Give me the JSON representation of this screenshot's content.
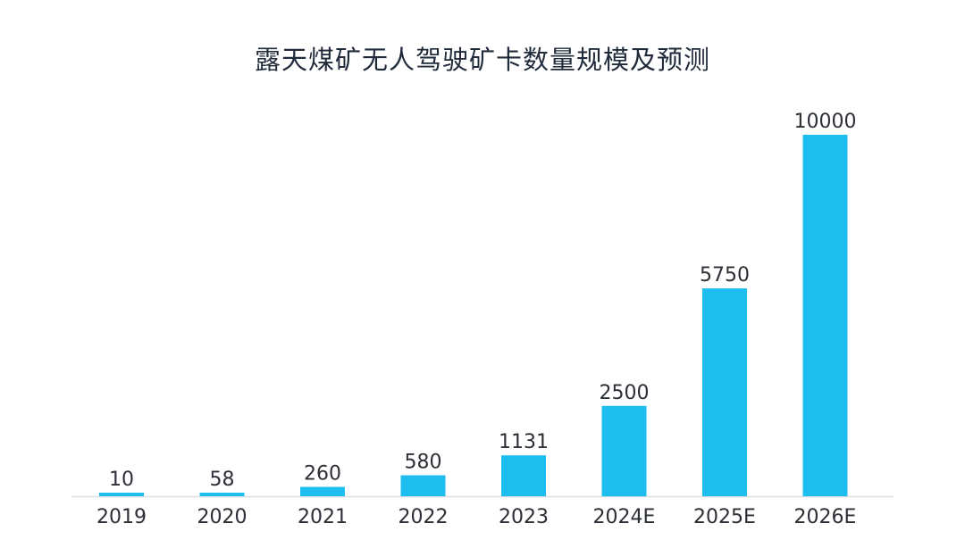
{
  "chart_data": {
    "type": "bar",
    "title": "露天煤矿无人驾驶矿卡数量规模及预测",
    "categories": [
      "2019",
      "2020",
      "2021",
      "2022",
      "2023",
      "2024E",
      "2025E",
      "2026E"
    ],
    "values": [
      10,
      58,
      260,
      580,
      1131,
      2500,
      5750,
      10000
    ],
    "data_labels": [
      "10",
      "58",
      "260",
      "580",
      "1131",
      "2500",
      "5750",
      "10000"
    ],
    "xlabel": "",
    "ylabel": "",
    "ylim": [
      0,
      10000
    ],
    "grid": false,
    "legend": "none",
    "colors": {
      "bar": "#1dbdef",
      "axis": "#d9dde2",
      "text": "#2b2f36",
      "title": "#1f2a3a"
    }
  }
}
